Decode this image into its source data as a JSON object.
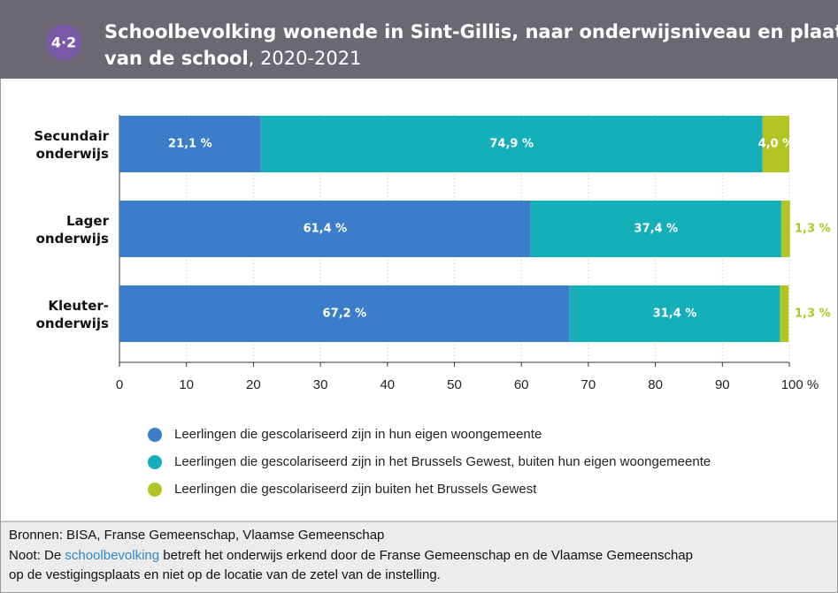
{
  "header": {
    "badge": "4·2",
    "title": [
      "Schoolbevolking wonende in Sint-Gillis, naar onderwijsniveau en plaats",
      "van de school"
    ],
    "period": ", 2020-2021"
  },
  "chart_data": {
    "type": "stacked_bar_horizontal",
    "categories": [
      "Secundair\nonderwijs",
      "Lager\nonderwijs",
      "Kleuter-\nonderwijs"
    ],
    "series": [
      {
        "name": "Leerlingen die gescolariseerd zijn in hun eigen woongemeente",
        "color": "#3a7dc9",
        "values": [
          21.1,
          61.4,
          67.2
        ],
        "value_labels": [
          "21,1 %",
          "61,4 %",
          "67,2 %"
        ]
      },
      {
        "name": "Leerlingen die gescolariseerd zijn in het Brussels Gewest, buiten hun eigen woongemeente",
        "color": "#14afb8",
        "values": [
          74.9,
          37.4,
          31.4
        ],
        "value_labels": [
          "74,9 %",
          "37,4 %",
          "31,4 %"
        ]
      },
      {
        "name": "Leerlingen die gescolariseerd zijn buiten het Brussels Gewest",
        "color": "#b3c425",
        "values": [
          4.0,
          1.3,
          1.3
        ],
        "value_labels": [
          "4,0 %",
          "1,3 %",
          "1,3 %"
        ]
      }
    ],
    "xlim": [
      0,
      100
    ],
    "xticks": [
      0,
      10,
      20,
      30,
      40,
      50,
      60,
      70,
      80,
      90,
      {
        "value": 100,
        "label": "100 %"
      }
    ],
    "grid": true
  },
  "footer": {
    "sources": "Bronnen: BISA, Franse Gemeenschap, Vlaamse Gemeenschap",
    "note_prefix": "Noot: De ",
    "note_link": "schoolbevolking",
    "note_rest": " betreft het onderwijs erkend door de Franse Gemeenschap en de Vlaamse Gemeenschap",
    "note_line2": "op de vestigingsplaats en niet op de locatie van de zetel van de instelling."
  }
}
